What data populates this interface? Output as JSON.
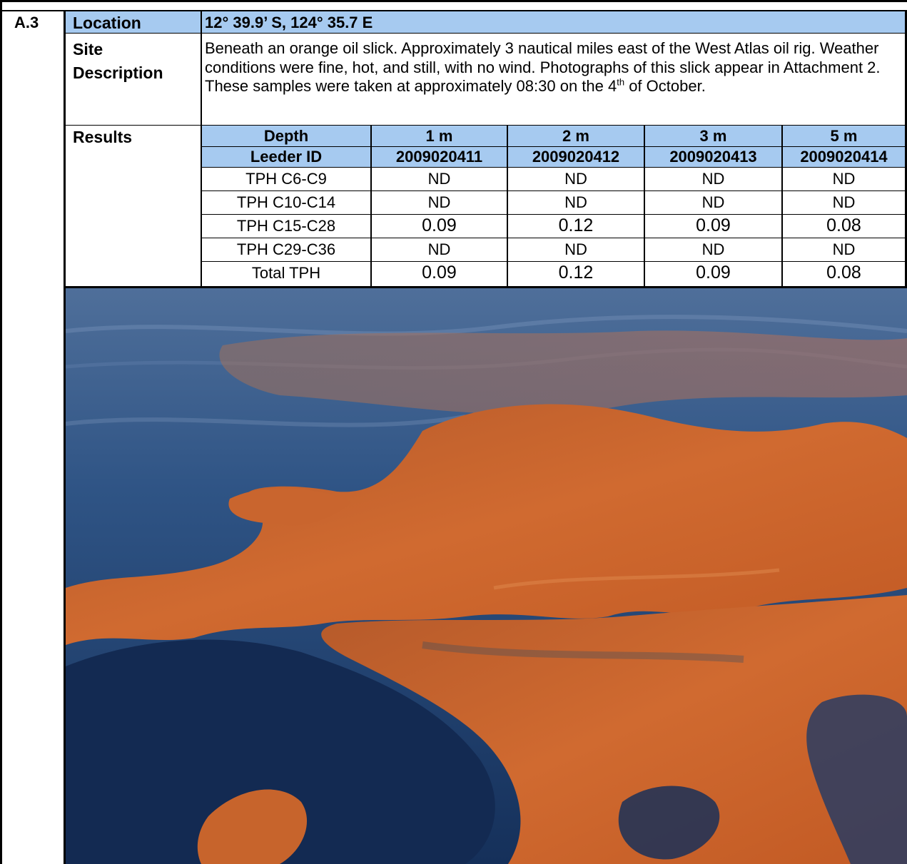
{
  "section_id": "A.3",
  "location": {
    "label": "Location",
    "value": "12° 39.9’ S, 124° 35.7 E"
  },
  "site_description": {
    "label_line1": "Site",
    "label_line2": "Description",
    "text_before_sup": "Beneath an orange oil slick.  Approximately 3 nautical miles east of the West Atlas oil rig.  Weather conditions were fine, hot, and still, with no wind.  Photographs of this slick appear in Attachment 2.  These samples were taken at approximately 08:30 on the 4",
    "sup": "th",
    "text_after_sup": " of October."
  },
  "results": {
    "label": "Results",
    "header_row": [
      "Depth",
      "1 m",
      "2 m",
      "3 m",
      "5 m"
    ],
    "id_row": [
      "Leeder ID",
      "2009020411",
      "2009020412",
      "2009020413",
      "2009020414"
    ],
    "rows": [
      [
        "TPH C6-C9",
        "ND",
        "ND",
        "ND",
        "ND"
      ],
      [
        "TPH C10-C14",
        "ND",
        "ND",
        "ND",
        "ND"
      ],
      [
        "TPH C15-C28",
        "0.09",
        "0.12",
        "0.09",
        "0.08"
      ],
      [
        "TPH C29-C36",
        "ND",
        "ND",
        "ND",
        "ND"
      ],
      [
        "Total TPH",
        "0.09",
        "0.12",
        "0.09",
        "0.08"
      ]
    ]
  },
  "colors": {
    "header_fill": "#a6caf0",
    "sea_blue": "#1d3a66",
    "oil_orange": "#c8662e"
  }
}
